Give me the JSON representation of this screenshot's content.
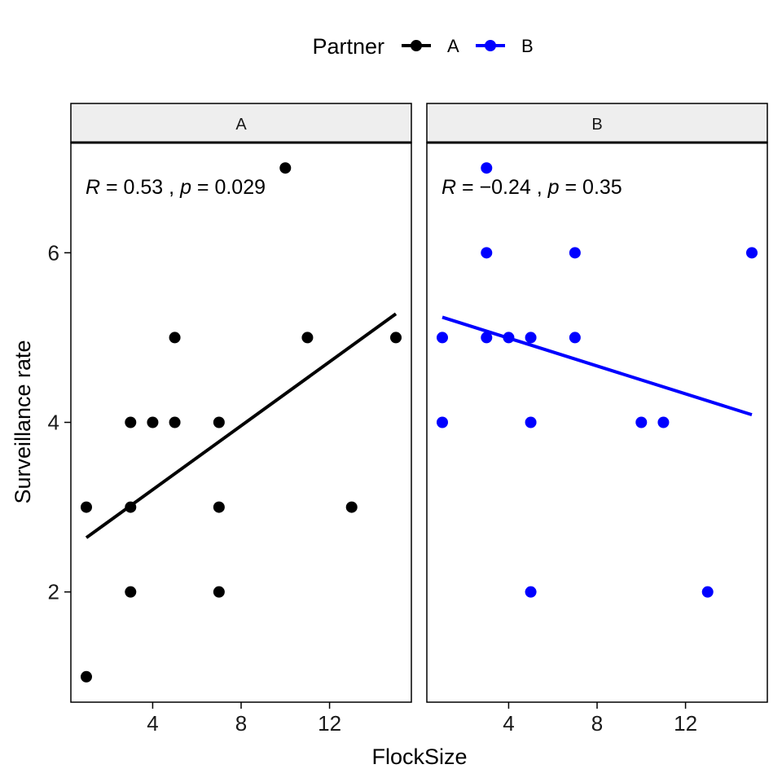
{
  "chart_data": {
    "type": "scatter",
    "xlabel": "FlockSize",
    "ylabel": "Surveillance rate",
    "xlim": [
      0.3,
      15.7
    ],
    "ylim": [
      0.7,
      7.3
    ],
    "xticks": [
      4,
      8,
      12
    ],
    "yticks": [
      2,
      4,
      6
    ],
    "grid": false,
    "legend": {
      "title": "Partner",
      "position": "top",
      "entries": [
        {
          "label": "A",
          "color": "#000000"
        },
        {
          "label": "B",
          "color": "#0000ff"
        }
      ]
    },
    "panels": [
      {
        "strip": "A",
        "color": "#000000",
        "annotation": {
          "r_label": "R",
          "r_value": " = 0.53 , ",
          "p_label": "p",
          "p_value": " = 0.029"
        },
        "points": [
          {
            "x": 1,
            "y": 1
          },
          {
            "x": 1,
            "y": 3
          },
          {
            "x": 3,
            "y": 2
          },
          {
            "x": 3,
            "y": 3
          },
          {
            "x": 3,
            "y": 4
          },
          {
            "x": 4,
            "y": 4
          },
          {
            "x": 5,
            "y": 4
          },
          {
            "x": 5,
            "y": 5
          },
          {
            "x": 7,
            "y": 2
          },
          {
            "x": 7,
            "y": 3
          },
          {
            "x": 7,
            "y": 4
          },
          {
            "x": 10,
            "y": 7
          },
          {
            "x": 11,
            "y": 5
          },
          {
            "x": 13,
            "y": 3
          },
          {
            "x": 15,
            "y": 5
          }
        ],
        "fit": {
          "x1": 1,
          "y1": 2.64,
          "x2": 15,
          "y2": 5.28
        }
      },
      {
        "strip": "B",
        "color": "#0000ff",
        "annotation": {
          "r_label": "R",
          "r_value": " = −0.24 , ",
          "p_label": "p",
          "p_value": " = 0.35"
        },
        "points": [
          {
            "x": 1,
            "y": 4
          },
          {
            "x": 1,
            "y": 5
          },
          {
            "x": 3,
            "y": 5
          },
          {
            "x": 3,
            "y": 6
          },
          {
            "x": 3,
            "y": 7
          },
          {
            "x": 4,
            "y": 5
          },
          {
            "x": 5,
            "y": 2
          },
          {
            "x": 5,
            "y": 4
          },
          {
            "x": 5,
            "y": 5
          },
          {
            "x": 7,
            "y": 5
          },
          {
            "x": 7,
            "y": 6
          },
          {
            "x": 10,
            "y": 4
          },
          {
            "x": 11,
            "y": 4
          },
          {
            "x": 13,
            "y": 2
          },
          {
            "x": 15,
            "y": 6
          }
        ],
        "fit": {
          "x1": 1,
          "y1": 5.24,
          "x2": 15,
          "y2": 4.09
        }
      }
    ]
  }
}
